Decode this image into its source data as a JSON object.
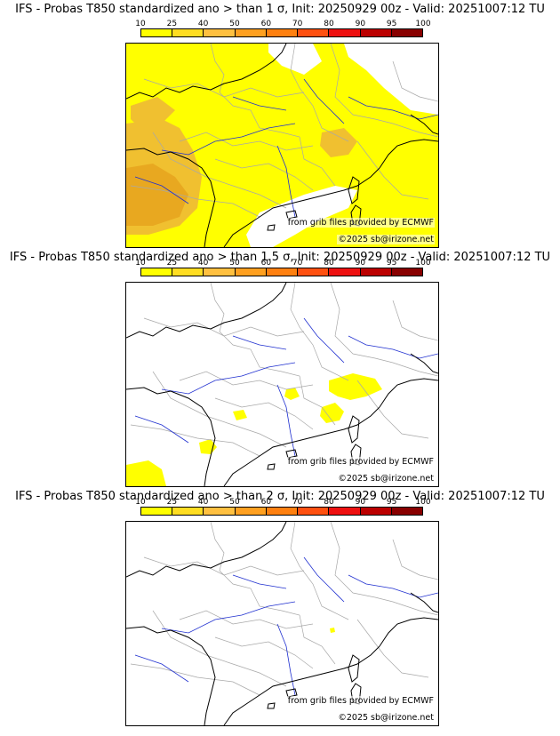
{
  "figure": {
    "panels": [
      {
        "title": "IFS - Probas T850  standardized ano > than 1 σ, Init: 20250929 00z - Valid: 20251007:12 TU",
        "credit_source": "from grib files provided by ECMWF",
        "credit_copyright": "©2025 sb@irizone.net"
      },
      {
        "title": "IFS - Probas T850  standardized ano > than 1.5 σ, Init: 20250929 00z - Valid: 20251007:12 TU",
        "credit_source": "from grib files provided by ECMWF",
        "credit_copyright": "©2025 sb@irizone.net"
      },
      {
        "title": "IFS - Probas T850  standardized ano > than 2 σ, Init: 20250929 00z - Valid: 20251007:12 TU",
        "credit_source": "from grib files provided by ECMWF",
        "credit_copyright": "©2025 sb@irizone.net"
      }
    ]
  },
  "colorbar": {
    "ticks": [
      "10",
      "25",
      "40",
      "50",
      "60",
      "70",
      "80",
      "90",
      "95",
      "100"
    ],
    "colors": [
      "#ffff00",
      "#ffdd22",
      "#ffc040",
      "#ffa020",
      "#ff8010",
      "#ff5010",
      "#ee1010",
      "#bb0000",
      "#880000"
    ]
  },
  "map_colors": {
    "low_prob": "#ffff00",
    "mid_prob": "#f0c030",
    "high_prob": "#e8a820",
    "coast": "#000000",
    "border": "#a8a8a8",
    "river": "#2030d0"
  }
}
